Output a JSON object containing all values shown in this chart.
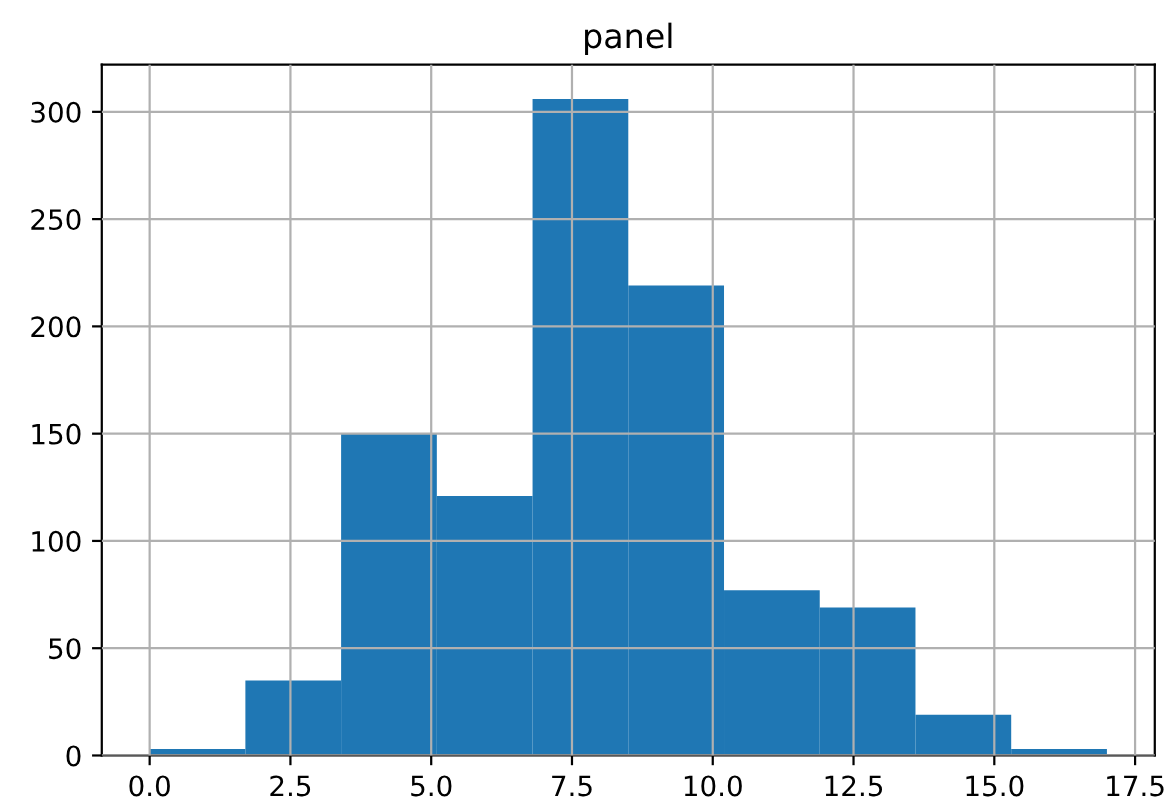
{
  "chart_data": {
    "type": "histogram",
    "title": "panel",
    "bins": [
      0,
      1.7,
      3.4,
      5.1,
      6.8,
      8.5,
      10.2,
      11.9,
      13.6,
      15.3,
      17
    ],
    "values": [
      3,
      35,
      150,
      121,
      306,
      219,
      77,
      69,
      19,
      3
    ],
    "color": "#1f77b4",
    "xlim": [
      -0.85,
      17.85
    ],
    "xticks": [
      {
        "value": 0,
        "label": "0.0"
      },
      {
        "value": 2.5,
        "label": "2.5"
      },
      {
        "value": 5,
        "label": "5.0"
      },
      {
        "value": 7.5,
        "label": "7.5"
      },
      {
        "value": 10,
        "label": "10.0"
      },
      {
        "value": 12.5,
        "label": "12.5"
      },
      {
        "value": 15,
        "label": "15.0"
      },
      {
        "value": 17.5,
        "label": "17.5"
      }
    ],
    "ylim": [
      0,
      322
    ],
    "yticks": [
      0,
      50,
      100,
      150,
      200,
      250,
      300
    ],
    "grid": true
  }
}
